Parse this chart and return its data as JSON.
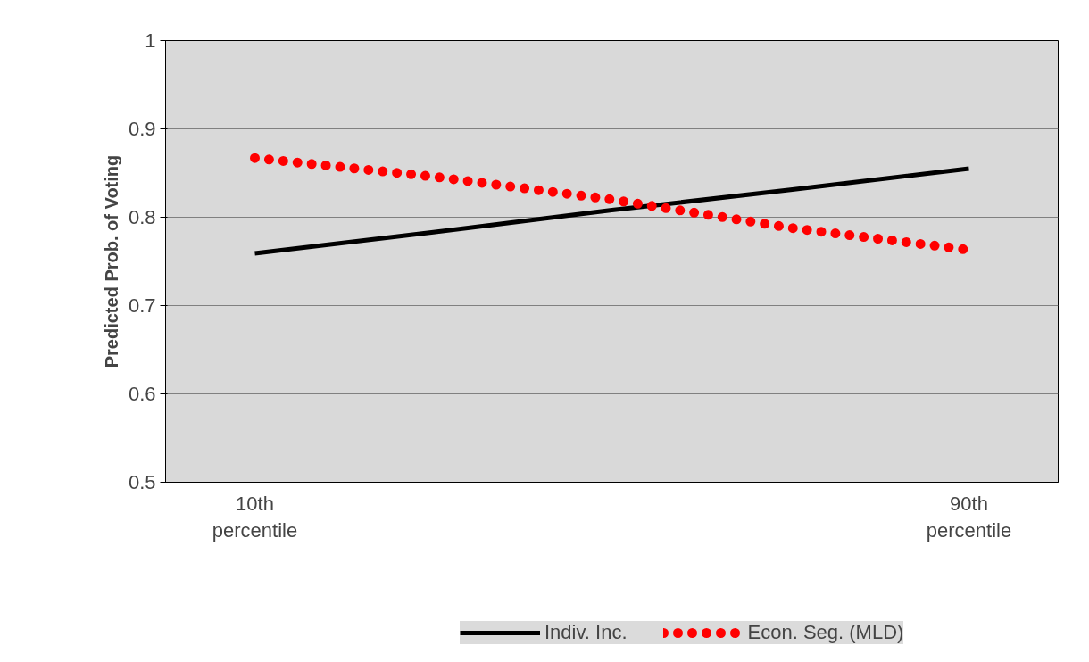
{
  "chart_data": {
    "type": "line",
    "ylabel": "Predicted Prob. of Voting",
    "categories": [
      "10th\npercentile",
      null,
      null,
      null,
      "90th\npercentile"
    ],
    "ylim": [
      0.5,
      1
    ],
    "yticks": [
      0.5,
      0.6,
      0.7,
      0.8,
      0.9,
      1
    ],
    "grid": "y",
    "legend": "bottom",
    "series": [
      {
        "name": "Indiv. Inc.",
        "color": "#000000",
        "line_style": "solid",
        "values": [
          0.759,
          0.783,
          0.808,
          0.831,
          0.855
        ]
      },
      {
        "name": "Econ. Seg. (MLD)",
        "color": "#ff0000",
        "line_style": "dotted",
        "values": [
          0.867,
          0.846,
          0.82,
          0.788,
          0.763
        ]
      }
    ]
  }
}
